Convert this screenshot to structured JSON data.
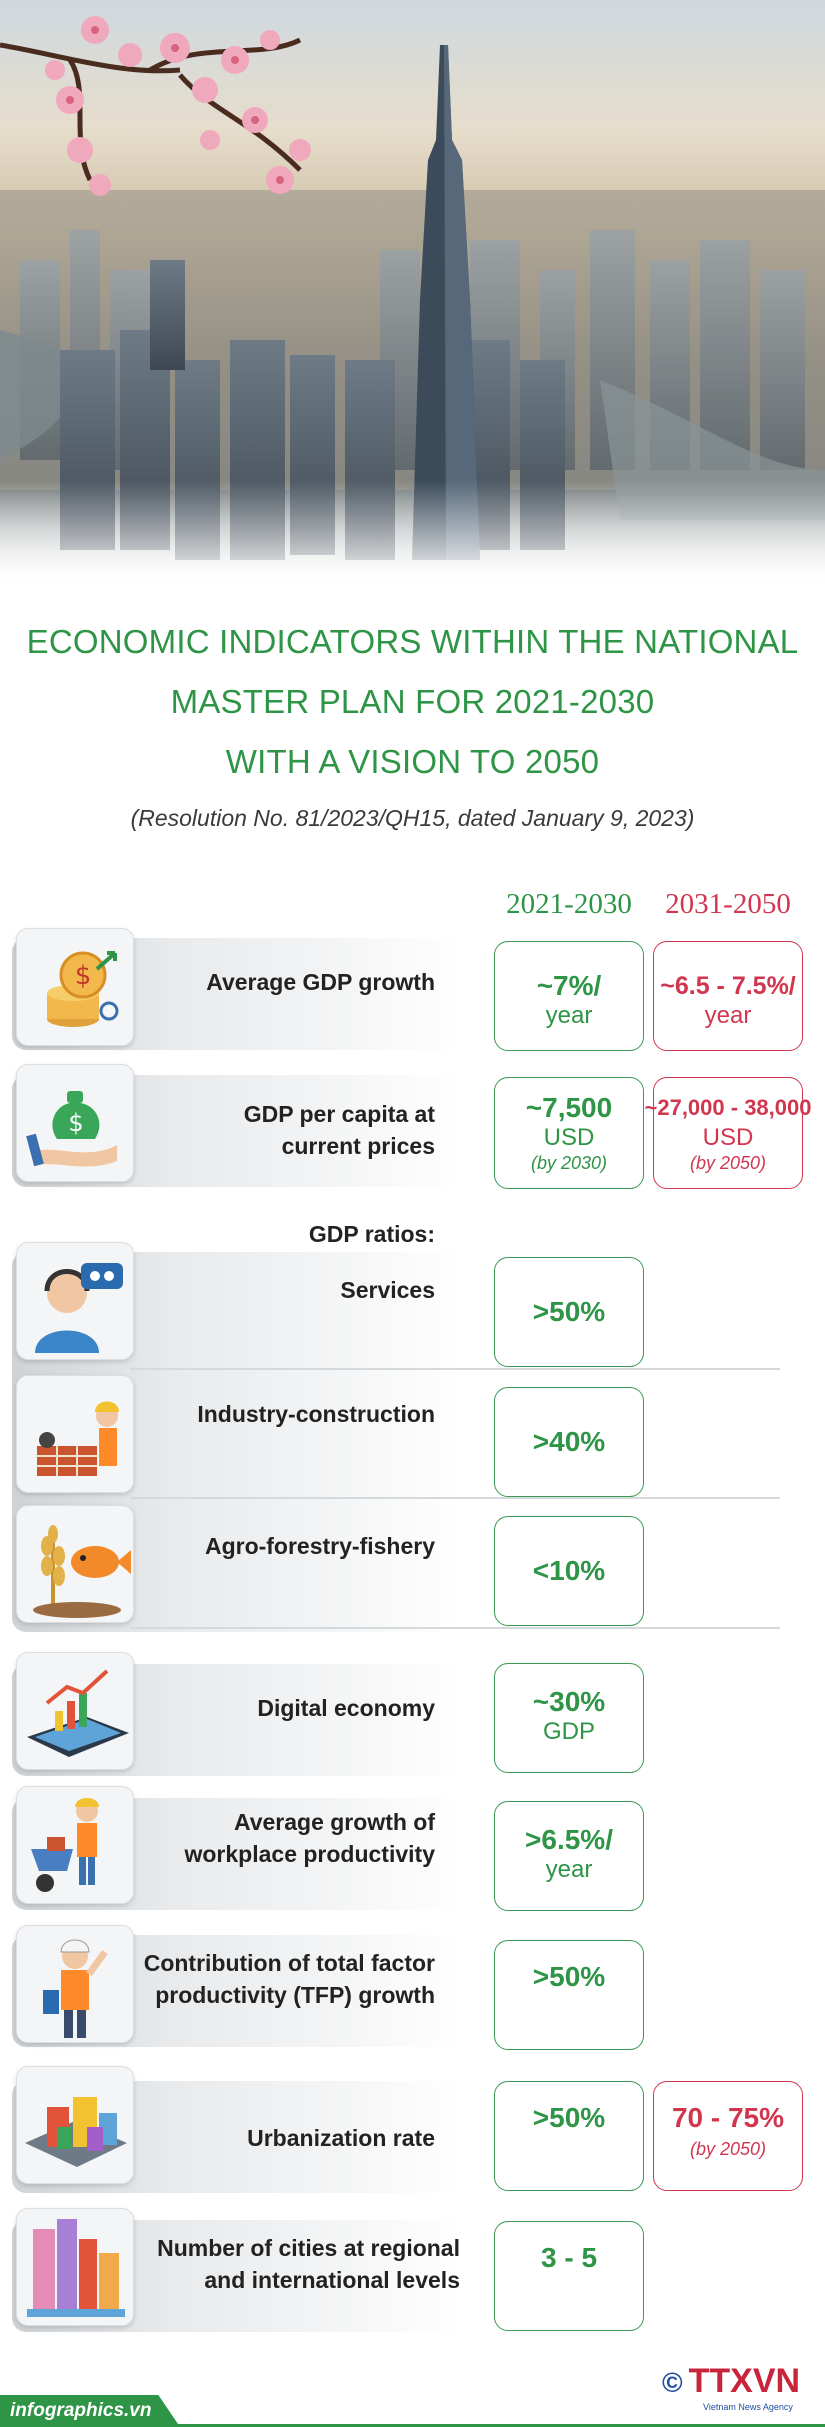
{
  "title": {
    "line1": "ECONOMIC INDICATORS WITHIN THE NATIONAL",
    "line2": "MASTER PLAN FOR 2021-2030",
    "line3": "WITH A VISION TO 2050"
  },
  "subtitle": "(Resolution No. 81/2023/QH15, dated January 9, 2023)",
  "columns": {
    "a": "2021-2030",
    "b": "2031-2050"
  },
  "colors": {
    "green": "#2e9446",
    "red": "#d2364f"
  },
  "rows": {
    "gdp_growth": {
      "label": "Average GDP growth",
      "a_big": "~7%/",
      "a_unit": "year",
      "b_big": "~6.5 - 7.5%/",
      "b_unit": "year",
      "icon": "coin-stack-icon"
    },
    "gdp_per_capita": {
      "label1": "GDP per capita at",
      "label2": "current prices",
      "a_big": "~7,500",
      "a_unit": "USD",
      "a_note": "(by 2030)",
      "b_big": "~27,000 - 38,000",
      "b_unit": "USD",
      "b_note": "(by 2050)",
      "icon": "money-bag-hand-icon"
    },
    "gdp_ratios_heading": "GDP ratios:",
    "services": {
      "label": "Services",
      "a_big": ">50%",
      "icon": "call-center-icon"
    },
    "industry": {
      "label": "Industry-construction",
      "a_big": ">40%",
      "icon": "construction-worker-icon"
    },
    "agro": {
      "label": "Agro-forestry-fishery",
      "a_big": "<10%",
      "icon": "wheat-fish-icon"
    },
    "digital": {
      "label": "Digital economy",
      "a_big": "~30%",
      "a_unit": "GDP",
      "icon": "tablet-chart-icon"
    },
    "productivity": {
      "label1": "Average growth of",
      "label2": "workplace productivity",
      "a_big": ">6.5%/",
      "a_unit": "year",
      "icon": "worker-wheelbarrow-icon"
    },
    "tfp": {
      "label1": "Contribution of total factor",
      "label2": "productivity (TFP) growth",
      "a_big": ">50%",
      "icon": "engineer-icon"
    },
    "urbanization": {
      "label": "Urbanization rate",
      "a_big": ">50%",
      "b_big": "70 - 75%",
      "b_note": "(by 2050)",
      "icon": "city-block-icon"
    },
    "cities": {
      "label1": "Number of cities at regional",
      "label2": "and international levels",
      "a_big": "3 - 5",
      "icon": "skyscrapers-icon"
    }
  },
  "footer": {
    "site": "infographics.vn",
    "logo": "TTXVN",
    "copyright": "©",
    "agency": "Vietnam News Agency"
  }
}
